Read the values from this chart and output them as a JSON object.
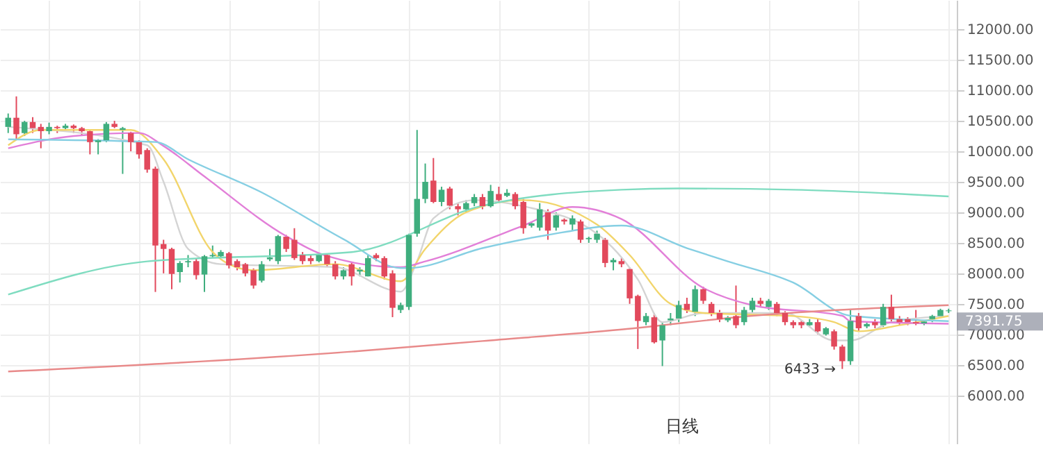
{
  "chart_data": {
    "type": "candlestick",
    "categories": [
      null,
      null,
      null,
      null,
      null,
      null,
      null,
      null,
      null,
      null,
      null,
      null,
      null,
      null,
      null,
      null,
      null,
      null,
      null,
      null,
      null,
      null,
      null,
      null,
      null,
      null,
      null,
      null,
      null,
      null,
      null,
      null,
      null,
      null,
      null,
      null,
      null,
      null,
      null,
      null,
      null,
      null,
      null,
      null,
      null,
      null,
      null,
      null,
      null,
      null,
      null,
      null,
      null,
      null,
      null,
      null,
      null,
      null,
      null,
      null,
      null,
      null,
      null,
      null,
      null,
      null,
      null,
      null,
      null,
      null,
      null,
      null,
      null,
      null,
      null,
      null,
      null,
      null,
      null,
      null,
      null,
      null,
      null,
      null,
      null,
      null,
      null,
      null,
      null,
      null,
      null,
      null,
      null,
      null,
      null,
      null,
      null,
      null,
      null,
      null,
      null,
      null,
      null,
      null,
      null,
      null,
      null,
      null,
      null,
      null,
      null,
      null,
      null,
      null,
      null,
      null
    ],
    "ohlc": [
      [
        10400,
        10620,
        10300,
        10550
      ],
      [
        10550,
        10900,
        10200,
        10280
      ],
      [
        10300,
        10500,
        10250,
        10480
      ],
      [
        10480,
        10560,
        10300,
        10380
      ],
      [
        10400,
        10450,
        10050,
        10330
      ],
      [
        10330,
        10470,
        10280,
        10400
      ],
      [
        10400,
        10420,
        10300,
        10380
      ],
      [
        10380,
        10450,
        10350,
        10420
      ],
      [
        10420,
        10440,
        10300,
        10380
      ],
      [
        10380,
        10400,
        10250,
        10330
      ],
      [
        10330,
        10360,
        9950,
        10150
      ],
      [
        10150,
        10200,
        9950,
        10180
      ],
      [
        10180,
        10480,
        10150,
        10450
      ],
      [
        10450,
        10500,
        10380,
        10400
      ],
      [
        10350,
        10400,
        9630,
        10380
      ],
      [
        10300,
        10320,
        10000,
        10150
      ],
      [
        10150,
        10180,
        9880,
        9950
      ],
      [
        10020,
        10050,
        9650,
        9700
      ],
      [
        9717,
        9750,
        7695,
        8456
      ],
      [
        8480,
        8550,
        8000,
        8400
      ],
      [
        8400,
        8420,
        7739,
        7990
      ],
      [
        8020,
        8200,
        7850,
        8170
      ],
      [
        8180,
        8300,
        8100,
        8200
      ],
      [
        8200,
        8240,
        7900,
        7970
      ],
      [
        7980,
        8300,
        7695,
        8280
      ],
      [
        8280,
        8456,
        8250,
        8300
      ],
      [
        8280,
        8380,
        8250,
        8350
      ],
      [
        8330,
        8350,
        8080,
        8130
      ],
      [
        8200,
        8230,
        8050,
        8100
      ],
      [
        8150,
        8170,
        7950,
        8000
      ],
      [
        8050,
        8080,
        7750,
        7800
      ],
      [
        7880,
        8200,
        7850,
        8150
      ],
      [
        8230,
        8400,
        8200,
        8260
      ],
      [
        8200,
        8630,
        8150,
        8610
      ],
      [
        8600,
        8630,
        8350,
        8400
      ],
      [
        8550,
        8740,
        8220,
        8250
      ],
      [
        8300,
        8350,
        8150,
        8200
      ],
      [
        8250,
        8300,
        8150,
        8200
      ],
      [
        8200,
        8330,
        8180,
        8300
      ],
      [
        8300,
        8320,
        8100,
        8150
      ],
      [
        8150,
        8200,
        7900,
        7950
      ],
      [
        7950,
        8100,
        7900,
        8050
      ],
      [
        8150,
        8180,
        7800,
        7950
      ],
      [
        8030,
        8100,
        7950,
        8060
      ],
      [
        7950,
        8300,
        7950,
        8250
      ],
      [
        8300,
        8330,
        8200,
        8250
      ],
      [
        8250,
        8280,
        7900,
        7950
      ],
      [
        8000,
        8050,
        7282,
        7435
      ],
      [
        7400,
        7520,
        7350,
        7480
      ],
      [
        7450,
        8650,
        7400,
        8630
      ],
      [
        8650,
        10350,
        8600,
        9220
      ],
      [
        9220,
        9800,
        9150,
        9500
      ],
      [
        9520,
        9890,
        9150,
        9170
      ],
      [
        9170,
        9420,
        9100,
        9370
      ],
      [
        9390,
        9420,
        9050,
        9110
      ],
      [
        9100,
        9150,
        8950,
        9050
      ],
      [
        9050,
        9200,
        9000,
        9150
      ],
      [
        9150,
        9300,
        9100,
        9250
      ],
      [
        9250,
        9300,
        9050,
        9100
      ],
      [
        9100,
        9450,
        9080,
        9350
      ],
      [
        9300,
        9420,
        9150,
        9200
      ],
      [
        9270,
        9380,
        9250,
        9320
      ],
      [
        9300,
        9330,
        9050,
        9100
      ],
      [
        9170,
        9220,
        8650,
        8740
      ],
      [
        8780,
        8850,
        8750,
        8820
      ],
      [
        8750,
        9150,
        8700,
        9050
      ],
      [
        9000,
        9050,
        8550,
        8700
      ],
      [
        8750,
        9000,
        8700,
        8950
      ],
      [
        8880,
        8900,
        8800,
        8850
      ],
      [
        8800,
        8950,
        8700,
        8900
      ],
      [
        8850,
        8880,
        8500,
        8550
      ],
      [
        8560,
        8600,
        8500,
        8580
      ],
      [
        8550,
        8700,
        8500,
        8650
      ],
      [
        8550,
        8580,
        8100,
        8170
      ],
      [
        8180,
        8250,
        8050,
        8220
      ],
      [
        8200,
        8250,
        8100,
        8150
      ],
      [
        8070,
        8100,
        7500,
        7590
      ],
      [
        7630,
        7650,
        6760,
        7220
      ],
      [
        7200,
        7350,
        7150,
        7300
      ],
      [
        7280,
        7350,
        6850,
        6870
      ],
      [
        6900,
        7200,
        6480,
        7150
      ],
      [
        7230,
        7350,
        7150,
        7260
      ],
      [
        7260,
        7550,
        7200,
        7480
      ],
      [
        7500,
        7600,
        7350,
        7400
      ],
      [
        7370,
        7800,
        7300,
        7740
      ],
      [
        7740,
        7780,
        7500,
        7550
      ],
      [
        7500,
        7530,
        7300,
        7350
      ],
      [
        7350,
        7400,
        7200,
        7250
      ],
      [
        7230,
        7300,
        7200,
        7270
      ],
      [
        7300,
        7800,
        7100,
        7150
      ],
      [
        7200,
        7450,
        7150,
        7400
      ],
      [
        7400,
        7600,
        7350,
        7550
      ],
      [
        7550,
        7600,
        7450,
        7500
      ],
      [
        7450,
        7580,
        7400,
        7550
      ],
      [
        7500,
        7530,
        7300,
        7350
      ],
      [
        7350,
        7380,
        7150,
        7200
      ],
      [
        7200,
        7230,
        7100,
        7150
      ],
      [
        7200,
        7230,
        7100,
        7150
      ],
      [
        7150,
        7250,
        7120,
        7200
      ],
      [
        7200,
        7250,
        7000,
        7050
      ],
      [
        7000,
        7120,
        6980,
        7100
      ],
      [
        7050,
        7080,
        6750,
        6800
      ],
      [
        6800,
        6830,
        6433,
        6560
      ],
      [
        6560,
        7410,
        6500,
        7220
      ],
      [
        7300,
        7350,
        7050,
        7100
      ],
      [
        7130,
        7200,
        7100,
        7170
      ],
      [
        7200,
        7250,
        7100,
        7150
      ],
      [
        7150,
        7500,
        7120,
        7450
      ],
      [
        7450,
        7650,
        7200,
        7250
      ],
      [
        7250,
        7300,
        7150,
        7200
      ],
      [
        7250,
        7280,
        7150,
        7200
      ],
      [
        7200,
        7400,
        7150,
        7180
      ],
      [
        7180,
        7230,
        7150,
        7210
      ],
      [
        7250,
        7320,
        7200,
        7300
      ],
      [
        7300,
        7420,
        7280,
        7400
      ],
      [
        7380,
        7420,
        7350,
        7391.75
      ]
    ],
    "colors": [
      "#3fae7e",
      "#e2495c",
      "#3fae7e",
      "#e2495c",
      "#e2495c",
      "#3fae7e",
      "#e2495c",
      "#3fae7e",
      "#e2495c",
      "#e2495c",
      "#e2495c",
      "#3fae7e",
      "#3fae7e",
      "#e2495c",
      "#3fae7e",
      "#e2495c",
      "#e2495c",
      "#e2495c",
      "#e2495c",
      "#e2495c",
      "#e2495c",
      "#3fae7e",
      "#3fae7e",
      "#e2495c",
      "#3fae7e",
      "#3fae7e",
      "#3fae7e",
      "#e2495c",
      "#e2495c",
      "#e2495c",
      "#e2495c",
      "#3fae7e",
      "#3fae7e",
      "#3fae7e",
      "#e2495c",
      "#e2495c",
      "#e2495c",
      "#e2495c",
      "#3fae7e",
      "#e2495c",
      "#e2495c",
      "#3fae7e",
      "#e2495c",
      "#3fae7e",
      "#3fae7e",
      "#e2495c",
      "#e2495c",
      "#e2495c",
      "#3fae7e",
      "#3fae7e",
      "#3fae7e",
      "#3fae7e",
      "#e2495c",
      "#3fae7e",
      "#e2495c",
      "#e2495c",
      "#3fae7e",
      "#3fae7e",
      "#e2495c",
      "#3fae7e",
      "#e2495c",
      "#3fae7e",
      "#e2495c",
      "#e2495c",
      "#3fae7e",
      "#3fae7e",
      "#e2495c",
      "#3fae7e",
      "#e2495c",
      "#3fae7e",
      "#e2495c",
      "#3fae7e",
      "#3fae7e",
      "#e2495c",
      "#3fae7e",
      "#e2495c",
      "#e2495c",
      "#e2495c",
      "#3fae7e",
      "#e2495c",
      "#3fae7e",
      "#3fae7e",
      "#3fae7e",
      "#e2495c",
      "#3fae7e",
      "#e2495c",
      "#e2495c",
      "#e2495c",
      "#3fae7e",
      "#e2495c",
      "#3fae7e",
      "#3fae7e",
      "#e2495c",
      "#3fae7e",
      "#e2495c",
      "#e2495c",
      "#e2495c",
      "#e2495c",
      "#3fae7e",
      "#e2495c",
      "#3fae7e",
      "#e2495c",
      "#e2495c",
      "#3fae7e",
      "#e2495c",
      "#3fae7e",
      "#e2495c",
      "#3fae7e",
      "#e2495c",
      "#e2495c",
      "#e2495c",
      "#e2495c",
      "#3fae7e",
      "#3fae7e",
      "#3fae7e",
      "#3fae7e"
    ],
    "series": [
      {
        "type": "line",
        "color": "#d4d4d4",
        "values": [
          10400,
          null,
          null,
          null,
          null,
          null,
          null,
          null,
          null,
          null,
          null,
          null,
          null,
          null,
          null,
          null,
          null,
          10100,
          null,
          9500,
          null,
          null,
          8400,
          null,
          null,
          null,
          8150,
          null,
          null,
          null,
          null,
          null,
          null,
          null,
          null,
          null,
          null,
          null,
          null,
          null,
          8100,
          null,
          null,
          null,
          null,
          null,
          null,
          null,
          7700,
          null,
          8200,
          null,
          8900,
          null,
          null,
          null,
          null,
          9200,
          null,
          null,
          null,
          null,
          null,
          9100,
          null,
          null,
          null,
          null,
          null,
          null,
          null,
          null,
          8650,
          null,
          null,
          null,
          null,
          7900,
          null,
          null,
          7200,
          null,
          null,
          null,
          null,
          7350,
          null,
          null,
          null,
          null,
          null,
          null,
          null,
          null,
          null,
          7350,
          null,
          null,
          null,
          null,
          null,
          6900,
          null,
          6900,
          null,
          null,
          null,
          null,
          7200,
          null,
          null,
          null,
          null,
          null,
          null,
          7300
        ]
      },
      {
        "type": "line",
        "color": "#f2d56b",
        "values": [
          10100,
          null,
          null,
          null,
          10350,
          null,
          null,
          null,
          null,
          null,
          null,
          null,
          null,
          null,
          null,
          10350,
          null,
          null,
          null,
          9870,
          null,
          null,
          null,
          null,
          null,
          8350,
          null,
          8150,
          null,
          null,
          8050,
          null,
          null,
          null,
          null,
          null,
          null,
          null,
          null,
          null,
          8150,
          null,
          null,
          null,
          null,
          null,
          null,
          null,
          7870,
          null,
          null,
          8400,
          null,
          null,
          null,
          null,
          9000,
          null,
          null,
          null,
          null,
          null,
          null,
          9200,
          null,
          null,
          null,
          null,
          null,
          null,
          null,
          null,
          8800,
          null,
          null,
          null,
          8300,
          null,
          null,
          null,
          null,
          7500,
          null,
          null,
          null,
          7350,
          null,
          null,
          null,
          null,
          null,
          null,
          null,
          null,
          null,
          null,
          7300,
          null,
          null,
          null,
          null,
          7200,
          null,
          null,
          7050,
          null,
          null,
          null,
          null,
          7150,
          null,
          null,
          null,
          null,
          null,
          7300
        ]
      },
      {
        "type": "line",
        "color": "#e27fd8",
        "values": [
          10050,
          null,
          null,
          null,
          null,
          null,
          null,
          null,
          10250,
          null,
          null,
          null,
          null,
          null,
          null,
          null,
          10300,
          null,
          null,
          10087,
          null,
          null,
          null,
          null,
          9587,
          null,
          null,
          null,
          null,
          null,
          null,
          null,
          null,
          null,
          8609,
          null,
          null,
          null,
          null,
          8283,
          null,
          null,
          null,
          null,
          null,
          null,
          null,
          null,
          8100,
          null,
          null,
          8196,
          null,
          null,
          null,
          null,
          null,
          null,
          null,
          null,
          null,
          null,
          null,
          8783,
          null,
          null,
          null,
          null,
          null,
          9087,
          null,
          null,
          null,
          null,
          null,
          8890,
          null,
          null,
          null,
          null,
          null,
          null,
          null,
          null,
          null,
          7761,
          null,
          null,
          null,
          null,
          null,
          7478,
          null,
          null,
          null,
          null,
          null,
          null,
          null,
          null,
          null,
          null,
          7304,
          7217,
          null,
          null,
          null,
          null,
          null,
          null,
          null,
          null,
          null,
          null,
          null,
          7174
        ]
      },
      {
        "type": "line",
        "color": "#86cfe3",
        "values": [
          10196,
          null,
          null,
          null,
          null,
          null,
          null,
          null,
          null,
          null,
          null,
          null,
          null,
          null,
          null,
          null,
          null,
          null,
          10152,
          null,
          null,
          null,
          9870,
          null,
          null,
          null,
          null,
          null,
          null,
          null,
          null,
          9326,
          null,
          null,
          null,
          null,
          null,
          null,
          null,
          null,
          null,
          8560,
          null,
          null,
          null,
          null,
          null,
          null,
          8087,
          8087,
          null,
          null,
          null,
          null,
          null,
          null,
          null,
          null,
          8413,
          null,
          null,
          null,
          null,
          null,
          null,
          null,
          8630,
          null,
          null,
          null,
          null,
          null,
          null,
          null,
          null,
          8783,
          null,
          null,
          null,
          null,
          null,
          null,
          null,
          8413,
          null,
          null,
          null,
          null,
          8196,
          null,
          null,
          null,
          null,
          null,
          null,
          null,
          7848,
          null,
          null,
          null,
          null,
          null,
          null,
          7304,
          null,
          null,
          null,
          null,
          null,
          null,
          null,
          null,
          null,
          null,
          null,
          7217
        ]
      },
      {
        "type": "line",
        "color": "#7fdcc0",
        "values": [
          7652,
          null,
          null,
          null,
          null,
          null,
          null,
          null,
          null,
          null,
          null,
          null,
          null,
          null,
          null,
          null,
          null,
          8196,
          null,
          null,
          null,
          null,
          null,
          null,
          null,
          null,
          null,
          null,
          null,
          null,
          null,
          null,
          null,
          null,
          null,
          null,
          null,
          null,
          null,
          null,
          null,
          null,
          8348,
          null,
          null,
          null,
          null,
          null,
          null,
          null,
          null,
          null,
          null,
          null,
          null,
          null,
          null,
          null,
          9109,
          null,
          null,
          null,
          null,
          null,
          null,
          null,
          null,
          null,
          null,
          null,
          null,
          null,
          null,
          null,
          null,
          9370,
          null,
          null,
          null,
          null,
          null,
          null,
          9391,
          null,
          null,
          null,
          null,
          null,
          null,
          null,
          null,
          null,
          null,
          null,
          null,
          null,
          9370,
          null,
          null,
          null,
          null,
          null,
          null,
          null,
          null,
          null,
          null,
          null,
          null,
          null,
          null,
          null,
          null,
          null,
          null,
          9261
        ]
      },
      {
        "type": "line",
        "color": "#e88a8a",
        "values": [
          6391,
          null,
          null,
          null,
          null,
          null,
          null,
          null,
          null,
          null,
          null,
          null,
          null,
          null,
          null,
          null,
          null,
          null,
          null,
          null,
          null,
          null,
          null,
          null,
          null,
          null,
          null,
          null,
          null,
          null,
          null,
          null,
          null,
          null,
          null,
          null,
          null,
          null,
          null,
          null,
          null,
          null,
          6717,
          null,
          null,
          null,
          null,
          null,
          null,
          null,
          null,
          null,
          null,
          null,
          null,
          null,
          null,
          null,
          6891,
          null,
          null,
          null,
          null,
          null,
          null,
          null,
          null,
          null,
          null,
          null,
          null,
          null,
          null,
          null,
          null,
          7080,
          null,
          null,
          null,
          null,
          null,
          null,
          null,
          null,
          null,
          null,
          null,
          null,
          null,
          null,
          null,
          7304,
          null,
          null,
          null,
          null,
          null,
          null,
          null,
          null,
          null,
          null,
          null,
          null,
          null,
          null,
          null,
          null,
          null,
          null,
          null,
          null,
          null,
          null,
          null,
          7478
        ]
      }
    ],
    "ylim": [
      5200,
      12480
    ],
    "yticks": [
      {
        "value": 6000,
        "label": "6000.00"
      },
      {
        "value": 6500,
        "label": "6500.00"
      },
      {
        "value": 7000,
        "label": "7000.00"
      },
      {
        "value": 7500,
        "label": "7500.00"
      },
      {
        "value": 8000,
        "label": "8000.00"
      },
      {
        "value": 8500,
        "label": "8500.00"
      },
      {
        "value": 9000,
        "label": "9000.00"
      },
      {
        "value": 9500,
        "label": "9500.00"
      },
      {
        "value": 10000,
        "label": "10000.00"
      },
      {
        "value": 10500,
        "label": "10500.00"
      },
      {
        "value": 11000,
        "label": "11000.00"
      },
      {
        "value": 11500,
        "label": "11500.00"
      },
      {
        "value": 12000,
        "label": "12000.00"
      }
    ],
    "grid": true,
    "annotations": [
      "6433 →",
      "7391.75",
      "日线"
    ]
  }
}
